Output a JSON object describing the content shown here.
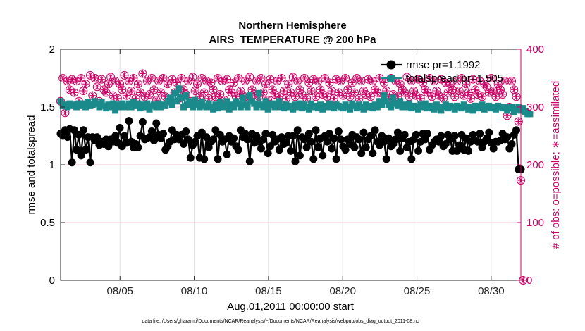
{
  "chart_data": {
    "type": "line",
    "title": "Northern Hemisphere",
    "subtitle": "AIRS_TEMPERATURE @ 200 hPa",
    "xlabel": "Aug.01,2011 00:00:00 start",
    "ylabel_left": "rmse and totalspread",
    "ylabel_right": "# of obs: o=possible; ∗=assimilated",
    "x_ticks": [
      "08/05",
      "08/10",
      "08/15",
      "08/20",
      "08/25",
      "08/30"
    ],
    "y_ticks_left": [
      "0",
      "0.5",
      "1",
      "1.5",
      "2"
    ],
    "y_ticks_right": [
      "0",
      "100",
      "200",
      "300",
      "400"
    ],
    "xlim_days": [
      1,
      32
    ],
    "ylim_left": [
      0,
      2
    ],
    "ylim_right": [
      0,
      400
    ],
    "grid": true,
    "legend_position": "top-right",
    "footer": "data file: /Users/gharamti/Documents/NCAR/Reanalysis/~/Documents/NCAR/Reanalysis/webpub/obs_diag_output_2011-08.nc",
    "series": [
      {
        "name": "rmse pr=1.1992",
        "axis": "left",
        "color": "#000000",
        "marker": "circle",
        "values": [
          1.27,
          1.25,
          1.3,
          1.24,
          1.31,
          1.02,
          1.3,
          1.13,
          1.26,
          1.08,
          1.3,
          1.13,
          1.24,
          1.02,
          1.24,
          1.21,
          1.24,
          1.17,
          1.2,
          1.18,
          1.22,
          1.16,
          1.22,
          1.2,
          1.25,
          1.19,
          1.32,
          1.16,
          1.25,
          1.19,
          1.38,
          1.2,
          1.15,
          1.18,
          1.15,
          1.25,
          1.37,
          1.22,
          1.23,
          1.24,
          1.29,
          1.21,
          1.36,
          1.26,
          1.23,
          1.27,
          1.13,
          1.16,
          1.2,
          1.3,
          1.22,
          1.26,
          1.22,
          1.26,
          1.18,
          1.29,
          1.22,
          1.06,
          1.17,
          1.2,
          1.25,
          1.06,
          1.28,
          1.05,
          1.24,
          1.15,
          1.2,
          1.22,
          1.3,
          1.05,
          1.26,
          1.2,
          1.22,
          1.09,
          1.25,
          1.2,
          1.23,
          1.16,
          1.13,
          1.3,
          1.24,
          1.27,
          1.22,
          1.03,
          1.27,
          1.19,
          1.25,
          1.2,
          1.14,
          1.22,
          1.27,
          1.1,
          1.16,
          1.26,
          1.2,
          1.22,
          1.13,
          1.24,
          1.18,
          1.19,
          1.25,
          1.12,
          1.25,
          1.03,
          1.3,
          1.08,
          1.24,
          1.22,
          1.15,
          1.27,
          1.2,
          1.05,
          1.3,
          1.15,
          1.23,
          1.08,
          1.25,
          1.2,
          1.27,
          1.14,
          1.23,
          1.05,
          1.29,
          1.22,
          1.16,
          1.13,
          1.22,
          1.18,
          1.26,
          1.15,
          1.24,
          1.22,
          1.1,
          1.28,
          1.15,
          1.22,
          1.25,
          1.1,
          1.3,
          1.2,
          1.17,
          1.25,
          1.2,
          1.05,
          1.23,
          1.16,
          1.18,
          1.22,
          1.28,
          1.12,
          1.23,
          1.26,
          1.15,
          1.2,
          1.05,
          1.22,
          1.26,
          1.12,
          1.2,
          1.27,
          1.22,
          1.27,
          1.13,
          1.17,
          1.2,
          1.22,
          1.2,
          1.25,
          1.16,
          1.18,
          1.26,
          1.22,
          1.12,
          1.25,
          1.12,
          1.17,
          1.26,
          1.13,
          1.23,
          1.12,
          1.2,
          1.26,
          1.21,
          1.2,
          1.27,
          1.15,
          1.2,
          1.23,
          1.28,
          1.19,
          1.14,
          1.2,
          1.2,
          1.21,
          1.27,
          1.22,
          1.24,
          1.14,
          1.18,
          1.26,
          1.3,
          0.96,
          0.96
        ]
      },
      {
        "name": "totalspread pr=1.505",
        "axis": "left",
        "color": "#1a8a8a",
        "marker": "square",
        "values": [
          1.55,
          1.51,
          1.52,
          1.5,
          1.53,
          1.51,
          1.52,
          1.5,
          1.53,
          1.51,
          1.53,
          1.5,
          1.54,
          1.51,
          1.52,
          1.55,
          1.53,
          1.5,
          1.54,
          1.51,
          1.49,
          1.52,
          1.5,
          1.53,
          1.47,
          1.52,
          1.5,
          1.53,
          1.5,
          1.51,
          1.53,
          1.5,
          1.54,
          1.51,
          1.53,
          1.49,
          1.52,
          1.5,
          1.53,
          1.48,
          1.51,
          1.52,
          1.5,
          1.53,
          1.5,
          1.52,
          1.51,
          1.55,
          1.58,
          1.52,
          1.62,
          1.55,
          1.66,
          1.58,
          1.5,
          1.6,
          1.52,
          1.55,
          1.5,
          1.56,
          1.52,
          1.5,
          1.54,
          1.51,
          1.5,
          1.53,
          1.5,
          1.48,
          1.52,
          1.49,
          1.54,
          1.5,
          1.51,
          1.55,
          1.48,
          1.52,
          1.5,
          1.55,
          1.53,
          1.5,
          1.58,
          1.52,
          1.5,
          1.6,
          1.55,
          1.53,
          1.5,
          1.62,
          1.52,
          1.5,
          1.55,
          1.48,
          1.52,
          1.53,
          1.5,
          1.52,
          1.55,
          1.5,
          1.49,
          1.52,
          1.5,
          1.51,
          1.48,
          1.52,
          1.5,
          1.53,
          1.49,
          1.52,
          1.5,
          1.48,
          1.53,
          1.5,
          1.51,
          1.49,
          1.52,
          1.48,
          1.51,
          1.5,
          1.53,
          1.5,
          1.49,
          1.52,
          1.51,
          1.5,
          1.49,
          1.52,
          1.5,
          1.48,
          1.53,
          1.51,
          1.49,
          1.52,
          1.5,
          1.48,
          1.52,
          1.5,
          1.51,
          1.49,
          1.52,
          1.5,
          1.55,
          1.52,
          1.6,
          1.55,
          1.52,
          1.5,
          1.58,
          1.53,
          1.51,
          1.55,
          1.5,
          1.52,
          1.5,
          1.53,
          1.49,
          1.51,
          1.5,
          1.48,
          1.52,
          1.5,
          1.53,
          1.49,
          1.51,
          1.5,
          1.48,
          1.52,
          1.5,
          1.47,
          1.5,
          1.52,
          1.49,
          1.51,
          1.5,
          1.48,
          1.51,
          1.5,
          1.49,
          1.52,
          1.5,
          1.48,
          1.5,
          1.47,
          1.51,
          1.49,
          1.5,
          1.52,
          1.48,
          1.5,
          1.51,
          1.49,
          1.5,
          1.48,
          1.51,
          1.5,
          1.49,
          1.5,
          1.47,
          1.49,
          1.5,
          1.46,
          1.48,
          1.5,
          1.47,
          1.49,
          1.46,
          1.44,
          1.44
        ]
      },
      {
        "name": "# of obs possible",
        "axis": "right",
        "color": "#cc0066",
        "marker": "circle-open",
        "values": [
          310,
          350,
          290,
          345,
          330,
          348,
          325,
          345,
          310,
          350,
          328,
          340,
          305,
          355,
          320,
          350,
          335,
          310,
          348,
          330,
          325,
          340,
          352,
          320,
          345,
          315,
          340,
          330,
          355,
          320,
          345,
          328,
          350,
          315,
          340,
          325,
          358,
          318,
          345,
          322,
          350,
          330,
          312,
          345,
          325,
          350,
          318,
          340,
          310,
          348,
          325,
          342,
          315,
          350,
          330,
          322,
          345,
          310,
          352,
          328,
          340,
          318,
          350,
          325,
          345,
          315,
          342,
          330,
          318,
          350,
          322,
          345,
          312,
          348,
          330,
          325,
          342,
          318,
          350,
          328,
          320,
          345,
          315,
          352,
          330,
          322,
          345,
          318,
          350,
          325,
          340,
          312,
          348,
          330,
          322,
          345,
          318,
          350,
          328,
          315,
          340,
          325,
          352,
          318,
          345,
          330,
          322,
          350,
          315,
          342,
          328,
          348,
          318,
          345,
          330,
          322,
          350,
          318,
          342,
          328,
          315,
          348,
          325,
          345,
          320,
          350,
          330,
          318,
          342,
          325,
          350,
          315,
          345,
          328,
          322,
          348,
          318,
          345,
          330,
          325,
          350,
          318,
          342,
          328,
          315,
          350,
          322,
          345,
          318,
          340,
          330,
          325,
          352,
          318,
          345,
          328,
          320,
          348,
          315,
          342,
          330,
          325,
          350,
          318,
          345,
          328,
          320,
          348,
          315,
          342,
          325,
          340,
          330,
          318,
          345,
          328,
          350,
          320,
          340,
          325,
          315,
          348,
          330,
          322,
          345,
          318,
          340,
          335,
          325,
          350,
          328,
          318,
          340,
          330,
          322,
          345,
          285,
          300,
          345,
          330,
          318,
          275,
          173,
          0
        ]
      },
      {
        "name": "# of obs assimilated",
        "axis": "right",
        "color": "#cc0066",
        "marker": "asterisk",
        "values": [
          310,
          350,
          290,
          345,
          330,
          348,
          325,
          345,
          310,
          350,
          328,
          340,
          305,
          355,
          320,
          350,
          335,
          310,
          348,
          330,
          325,
          340,
          352,
          320,
          345,
          315,
          340,
          330,
          355,
          320,
          345,
          328,
          350,
          315,
          340,
          325,
          358,
          318,
          345,
          322,
          350,
          330,
          312,
          345,
          325,
          350,
          318,
          340,
          310,
          348,
          325,
          342,
          315,
          350,
          330,
          322,
          345,
          310,
          352,
          328,
          340,
          318,
          350,
          325,
          345,
          315,
          342,
          330,
          318,
          350,
          322,
          345,
          312,
          348,
          330,
          325,
          342,
          318,
          350,
          328,
          320,
          345,
          315,
          352,
          330,
          322,
          345,
          318,
          350,
          325,
          340,
          312,
          348,
          330,
          322,
          345,
          318,
          350,
          328,
          315,
          340,
          325,
          352,
          318,
          345,
          330,
          322,
          350,
          315,
          342,
          328,
          348,
          318,
          345,
          330,
          322,
          350,
          318,
          342,
          328,
          315,
          348,
          325,
          345,
          320,
          350,
          330,
          318,
          342,
          325,
          350,
          315,
          345,
          328,
          322,
          348,
          318,
          345,
          330,
          325,
          350,
          318,
          342,
          328,
          315,
          350,
          322,
          345,
          318,
          340,
          330,
          325,
          352,
          318,
          345,
          328,
          320,
          348,
          315,
          342,
          330,
          325,
          350,
          318,
          345,
          328,
          320,
          348,
          315,
          342,
          325,
          340,
          330,
          318,
          345,
          328,
          350,
          320,
          340,
          325,
          315,
          348,
          330,
          322,
          345,
          318,
          340,
          335,
          325,
          350,
          328,
          318,
          340,
          330,
          322,
          345,
          285,
          300,
          345,
          330,
          318,
          275,
          173,
          0
        ]
      }
    ],
    "colors": {
      "left_axis": "#000000",
      "right_axis": "#cc0066",
      "grid": "#e0e0e0",
      "obs_grid": "#f3c6da"
    }
  }
}
